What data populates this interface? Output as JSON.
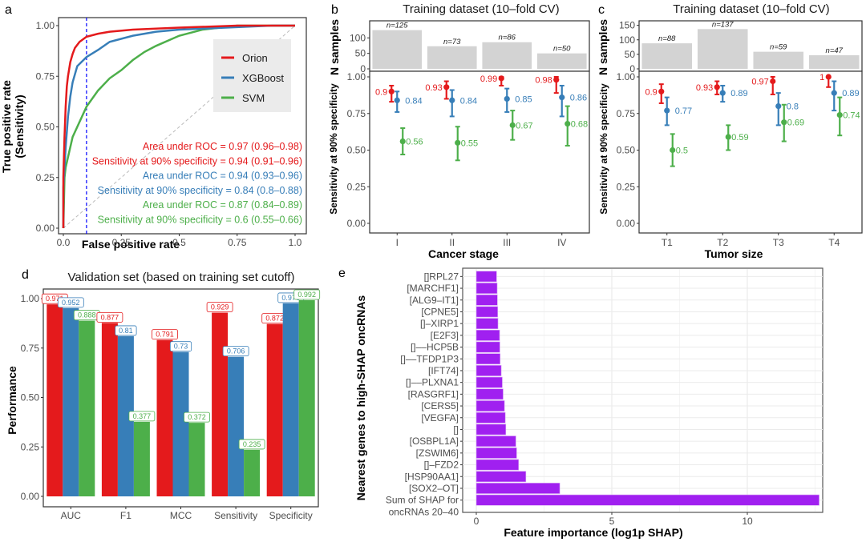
{
  "colors": {
    "orion": "#e41a1c",
    "xgboost": "#377eb8",
    "svm": "#4daf4a",
    "bar_gray": "#d3d3d3",
    "shap": "#a020f0",
    "cutoff": "#0000ff"
  },
  "chart_data": [
    {
      "id": "a",
      "panel_label": "a",
      "type": "line",
      "title": "",
      "xlabel": "False positive rate",
      "ylabel": [
        "True positive rate",
        "(Sensitivity)"
      ],
      "xlim": [
        0,
        1
      ],
      "ylim": [
        0,
        1
      ],
      "xticks": [
        "0.0",
        "0.25",
        "0.5",
        "0.75",
        "1.0"
      ],
      "yticks": [
        "0.00",
        "0.25",
        "0.50",
        "0.75",
        "1.00"
      ],
      "cutoff_fpr": 0.1,
      "legend": {
        "position": "top-right",
        "entries": [
          "Orion",
          "XGBoost",
          "SVM"
        ]
      },
      "series": [
        {
          "name": "Orion",
          "color": "#e41a1c",
          "x": [
            0,
            0,
            0.005,
            0.01,
            0.015,
            0.02,
            0.03,
            0.04,
            0.05,
            0.07,
            0.1,
            0.15,
            0.2,
            0.3,
            0.5,
            0.75,
            1.0
          ],
          "y": [
            0,
            0.25,
            0.45,
            0.6,
            0.7,
            0.75,
            0.82,
            0.86,
            0.89,
            0.92,
            0.945,
            0.96,
            0.97,
            0.98,
            0.99,
            1.0,
            1.0
          ]
        },
        {
          "name": "XGBoost",
          "color": "#377eb8",
          "x": [
            0,
            0,
            0.01,
            0.02,
            0.03,
            0.04,
            0.06,
            0.1,
            0.15,
            0.2,
            0.3,
            0.4,
            0.5,
            0.7,
            0.9,
            1.0
          ],
          "y": [
            0,
            0.2,
            0.4,
            0.55,
            0.65,
            0.72,
            0.8,
            0.845,
            0.88,
            0.92,
            0.95,
            0.97,
            0.98,
            0.99,
            1.0,
            1.0
          ]
        },
        {
          "name": "SVM",
          "color": "#4daf4a",
          "x": [
            0,
            0.005,
            0.01,
            0.02,
            0.04,
            0.06,
            0.08,
            0.1,
            0.15,
            0.2,
            0.25,
            0.3,
            0.35,
            0.4,
            0.5,
            0.6,
            0.75,
            1.0
          ],
          "y": [
            0,
            0.25,
            0.3,
            0.35,
            0.45,
            0.5,
            0.55,
            0.6,
            0.68,
            0.74,
            0.78,
            0.83,
            0.87,
            0.9,
            0.95,
            0.98,
            1.0,
            1.0
          ]
        }
      ],
      "annotations": [
        {
          "text": "Area under ROC = 0.97 (0.96–0.98)",
          "color": "#e41a1c"
        },
        {
          "text": "Sensitivity at 90% specificity = 0.94 (0.91–0.96)",
          "color": "#e41a1c"
        },
        {
          "text": "Area under ROC = 0.94 (0.93–0.96)",
          "color": "#377eb8"
        },
        {
          "text": "Sensitivity at 90% specificity = 0.84 (0.8–0.88)",
          "color": "#377eb8"
        },
        {
          "text": "Area under ROC = 0.87 (0.84–0.89)",
          "color": "#4daf4a"
        },
        {
          "text": "Sensitivity at 90% specificity = 0.6 (0.55–0.66)",
          "color": "#4daf4a"
        }
      ]
    },
    {
      "id": "b",
      "panel_label": "b",
      "type": "scatter",
      "title": "Training dataset (10–fold CV)",
      "xlabel": "Cancer stage",
      "ylabel": "Sensitivity at 90% specificity",
      "top_ylabel": "N samples",
      "categories": [
        "I",
        "II",
        "III",
        "IV"
      ],
      "n_samples": [
        125,
        73,
        86,
        50
      ],
      "n_labels": [
        "n=125",
        "n=73",
        "n=86",
        "n=50"
      ],
      "top_ylim": [
        0,
        150
      ],
      "top_yticks": [
        "0",
        "50",
        "100"
      ],
      "top_ytick_values": [
        0,
        50,
        100
      ],
      "ylim": [
        0,
        1
      ],
      "yticks": [
        "0.00",
        "0.25",
        "0.50",
        "0.75",
        "1.00"
      ],
      "series": [
        {
          "name": "Orion",
          "color": "#e41a1c",
          "values": [
            0.9,
            0.93,
            0.99,
            0.98
          ],
          "lo": [
            0.83,
            0.85,
            0.94,
            0.89
          ],
          "hi": [
            0.94,
            0.97,
            1.0,
            1.0
          ],
          "labels": [
            "0.9",
            "0.93",
            "0.99",
            "0.98"
          ]
        },
        {
          "name": "XGBoost",
          "color": "#377eb8",
          "values": [
            0.84,
            0.84,
            0.85,
            0.86
          ],
          "lo": [
            0.76,
            0.73,
            0.76,
            0.73
          ],
          "hi": [
            0.9,
            0.91,
            0.92,
            0.94
          ],
          "labels": [
            "0.84",
            "0.84",
            "0.85",
            "0.86"
          ]
        },
        {
          "name": "SVM",
          "color": "#4daf4a",
          "values": [
            0.56,
            0.55,
            0.67,
            0.68
          ],
          "lo": [
            0.47,
            0.43,
            0.57,
            0.53
          ],
          "hi": [
            0.65,
            0.66,
            0.77,
            0.8
          ],
          "labels": [
            "0.56",
            "0.55",
            "0.67",
            "0.68"
          ]
        }
      ]
    },
    {
      "id": "c",
      "panel_label": "c",
      "type": "scatter",
      "title": "Training dataset (10–fold CV)",
      "xlabel": "Tumor size",
      "ylabel": "Sensitivity at 90% specificity",
      "top_ylabel": "N samples",
      "categories": [
        "T1",
        "T2",
        "T3",
        "T4"
      ],
      "n_samples": [
        88,
        137,
        59,
        47
      ],
      "n_labels": [
        "n=88",
        "n=137",
        "n=59",
        "n=47"
      ],
      "top_ylim": [
        0,
        160
      ],
      "top_yticks": [
        "0",
        "50",
        "100",
        "150"
      ],
      "top_ytick_values": [
        0,
        50,
        100,
        150
      ],
      "ylim": [
        0,
        1
      ],
      "yticks": [
        "0.00",
        "0.25",
        "0.50",
        "0.75",
        "1.00"
      ],
      "series": [
        {
          "name": "Orion",
          "color": "#e41a1c",
          "values": [
            0.9,
            0.93,
            0.97,
            1.0
          ],
          "lo": [
            0.82,
            0.88,
            0.88,
            0.93
          ],
          "hi": [
            0.95,
            0.97,
            1.0,
            1.0
          ],
          "labels": [
            "0.9",
            "0.93",
            "0.97",
            "1"
          ]
        },
        {
          "name": "XGBoost",
          "color": "#377eb8",
          "values": [
            0.77,
            0.89,
            0.8,
            0.89
          ],
          "lo": [
            0.67,
            0.83,
            0.67,
            0.77
          ],
          "hi": [
            0.86,
            0.94,
            0.89,
            0.97
          ],
          "labels": [
            "0.77",
            "0.89",
            "0.8",
            "0.89"
          ]
        },
        {
          "name": "SVM",
          "color": "#4daf4a",
          "values": [
            0.5,
            0.59,
            0.69,
            0.74
          ],
          "lo": [
            0.39,
            0.5,
            0.56,
            0.6
          ],
          "hi": [
            0.61,
            0.67,
            0.81,
            0.86
          ],
          "labels": [
            "0.5",
            "0.59",
            "0.69",
            "0.74"
          ]
        }
      ]
    },
    {
      "id": "d",
      "panel_label": "d",
      "type": "bar",
      "title": "Validation set (based on training set cutoff)",
      "xlabel": "",
      "ylabel": "Performance",
      "categories": [
        "AUC",
        "F1",
        "MCC",
        "Sensitivity",
        "Specificity"
      ],
      "ylim": [
        0,
        1
      ],
      "yticks": [
        "0.00",
        "0.25",
        "0.50",
        "0.75",
        "1.00"
      ],
      "series": [
        {
          "name": "Orion",
          "color": "#e41a1c",
          "values": [
            0.971,
            0.877,
            0.791,
            0.929,
            0.872
          ],
          "labels": [
            "0.971",
            "0.877",
            "0.791",
            "0.929",
            "0.872"
          ]
        },
        {
          "name": "XGBoost",
          "color": "#377eb8",
          "values": [
            0.952,
            0.81,
            0.73,
            0.706,
            0.976
          ],
          "labels": [
            "0.952",
            "0.81",
            "0.73",
            "0.706",
            "0.976"
          ]
        },
        {
          "name": "SVM",
          "color": "#4daf4a",
          "values": [
            0.888,
            0.377,
            0.372,
            0.235,
            0.992
          ],
          "labels": [
            "0.888",
            "0.377",
            "0.372",
            "0.235",
            "0.992"
          ]
        }
      ]
    },
    {
      "id": "e",
      "panel_label": "e",
      "type": "bar",
      "orientation": "horizontal",
      "title": "",
      "xlabel": "Feature importance (log1p SHAP)",
      "ylabel": "Nearest genes to high-SHAP oncRNAs",
      "xlim": [
        0,
        13
      ],
      "xticks": [
        "0",
        "5",
        "10"
      ],
      "xtick_values": [
        0,
        5,
        10
      ],
      "grid": true,
      "categories": [
        [
          "[]RPL27"
        ],
        [
          "[MARCHF1]"
        ],
        [
          "[ALG9–IT1]"
        ],
        [
          "[CPNE5]"
        ],
        [
          "[]–XIRP1"
        ],
        [
          "[E2F3]"
        ],
        [
          "[]––HCP5B"
        ],
        [
          "[]––TFDP1P3"
        ],
        [
          "[IFT74]"
        ],
        [
          "[]––PLXNA1"
        ],
        [
          "[RASGRF1]"
        ],
        [
          "[CERS5]"
        ],
        [
          "[VEGFA]"
        ],
        [
          "[]"
        ],
        [
          "[OSBPL1A]"
        ],
        [
          "[ZSWIM6]"
        ],
        [
          "[]–FZD2"
        ],
        [
          "[HSP90AA1]"
        ],
        [
          "[SOX2–OT]"
        ],
        [
          "Sum of SHAP for",
          "oncRNAs 20–40"
        ]
      ],
      "values": [
        0.75,
        0.77,
        0.78,
        0.79,
        0.8,
        0.86,
        0.87,
        0.88,
        0.92,
        0.96,
        0.99,
        1.04,
        1.07,
        1.09,
        1.46,
        1.49,
        1.56,
        1.83,
        3.08,
        12.65
      ]
    }
  ]
}
